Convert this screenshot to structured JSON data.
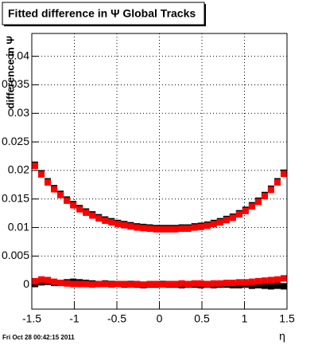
{
  "chart_data": {
    "type": "scatter",
    "title": "Fitted difference in  Ψ   Global Tracks",
    "y_label": "difference in Ψ",
    "x_label": "η",
    "footer": "Fri Oct 28 00:42:15 2011",
    "x": [
      -1.4625,
      -1.3875,
      -1.3125,
      -1.2375,
      -1.1625,
      -1.0875,
      -1.0125,
      -0.9375,
      -0.8625,
      -0.7875,
      -0.7125,
      -0.6375,
      -0.5625,
      -0.4875,
      -0.4125,
      -0.3375,
      -0.2625,
      -0.1875,
      -0.1125,
      -0.0375,
      0.0375,
      0.1125,
      0.1875,
      0.2625,
      0.3375,
      0.4125,
      0.4875,
      0.5625,
      0.6375,
      0.7125,
      0.7875,
      0.8625,
      0.9375,
      1.0125,
      1.0875,
      1.1625,
      1.2375,
      1.3125,
      1.3875,
      1.4625
    ],
    "series": [
      {
        "color": "#000000",
        "values": [
          0.021,
          0.0195,
          0.0181,
          0.0169,
          0.0159,
          0.0149,
          0.0141,
          0.0134,
          0.0128,
          0.0123,
          0.0118,
          0.0114,
          0.0111,
          0.0108,
          0.0106,
          0.0104,
          0.0102,
          0.0101,
          0.01,
          0.0099,
          0.0099,
          0.0099,
          0.0099,
          0.01,
          0.01,
          0.0102,
          0.0103,
          0.0105,
          0.0108,
          0.0111,
          0.0115,
          0.0119,
          0.0125,
          0.0131,
          0.0139,
          0.0147,
          0.0157,
          0.0168,
          0.0181,
          0.0196
        ]
      },
      {
        "color": "#000000",
        "values": [
          0.0001,
          0.0004,
          0.0005,
          0.0003,
          0.0003,
          0.0004,
          0.0005,
          0.0004,
          0.0003,
          0.0002,
          0.0001,
          0.0002,
          0.0001,
          0.0001,
          0.0,
          0.0001,
          0.0,
          -0.0001,
          0.0,
          0.0,
          0.0001,
          0.0,
          0.0,
          -0.0001,
          0.0,
          0.0,
          -0.0001,
          0.0,
          -0.0001,
          0.0,
          0.0,
          -0.0001,
          -0.0001,
          0.0,
          -0.0002,
          -0.0001,
          -0.0002,
          -0.0003,
          -0.0002,
          -0.0003
        ]
      },
      {
        "color": "#ff0000",
        "values": [
          0.0208,
          0.0193,
          0.0179,
          0.0167,
          0.0157,
          0.0147,
          0.0139,
          0.0132,
          0.0126,
          0.0121,
          0.0116,
          0.0112,
          0.0109,
          0.0106,
          0.0104,
          0.0102,
          0.01,
          0.0099,
          0.0098,
          0.0097,
          0.0097,
          0.0097,
          0.0097,
          0.0098,
          0.0098,
          0.01,
          0.0101,
          0.0103,
          0.0106,
          0.0109,
          0.0113,
          0.0117,
          0.0123,
          0.0129,
          0.0137,
          0.0145,
          0.0155,
          0.0166,
          0.0179,
          0.0194
        ]
      },
      {
        "color": "#ff0000",
        "values": [
          0.0006,
          0.0009,
          0.0008,
          0.0005,
          0.0003,
          0.0002,
          0.0001,
          0.0001,
          0.0001,
          0.0,
          0.0001,
          0.0001,
          0.0,
          0.0001,
          0.0001,
          0.0,
          0.0001,
          0.0,
          0.0001,
          0.0001,
          0.0,
          0.0001,
          0.0001,
          0.0002,
          0.0001,
          0.0002,
          0.0002,
          0.0001,
          0.0002,
          0.0002,
          0.0003,
          0.0003,
          0.0004,
          0.0004,
          0.0005,
          0.0006,
          0.0007,
          0.0008,
          0.0009,
          0.0011
        ]
      }
    ],
    "xlim": [
      -1.5,
      1.5
    ],
    "ylim": [
      -0.0043,
      0.044
    ],
    "xticks": [
      -1.5,
      -1,
      -0.5,
      0,
      0.5,
      1,
      1.5
    ],
    "yticks": [
      0,
      0.005,
      0.01,
      0.015,
      0.02,
      0.025,
      0.03,
      0.035,
      0.04
    ],
    "grid": true
  }
}
